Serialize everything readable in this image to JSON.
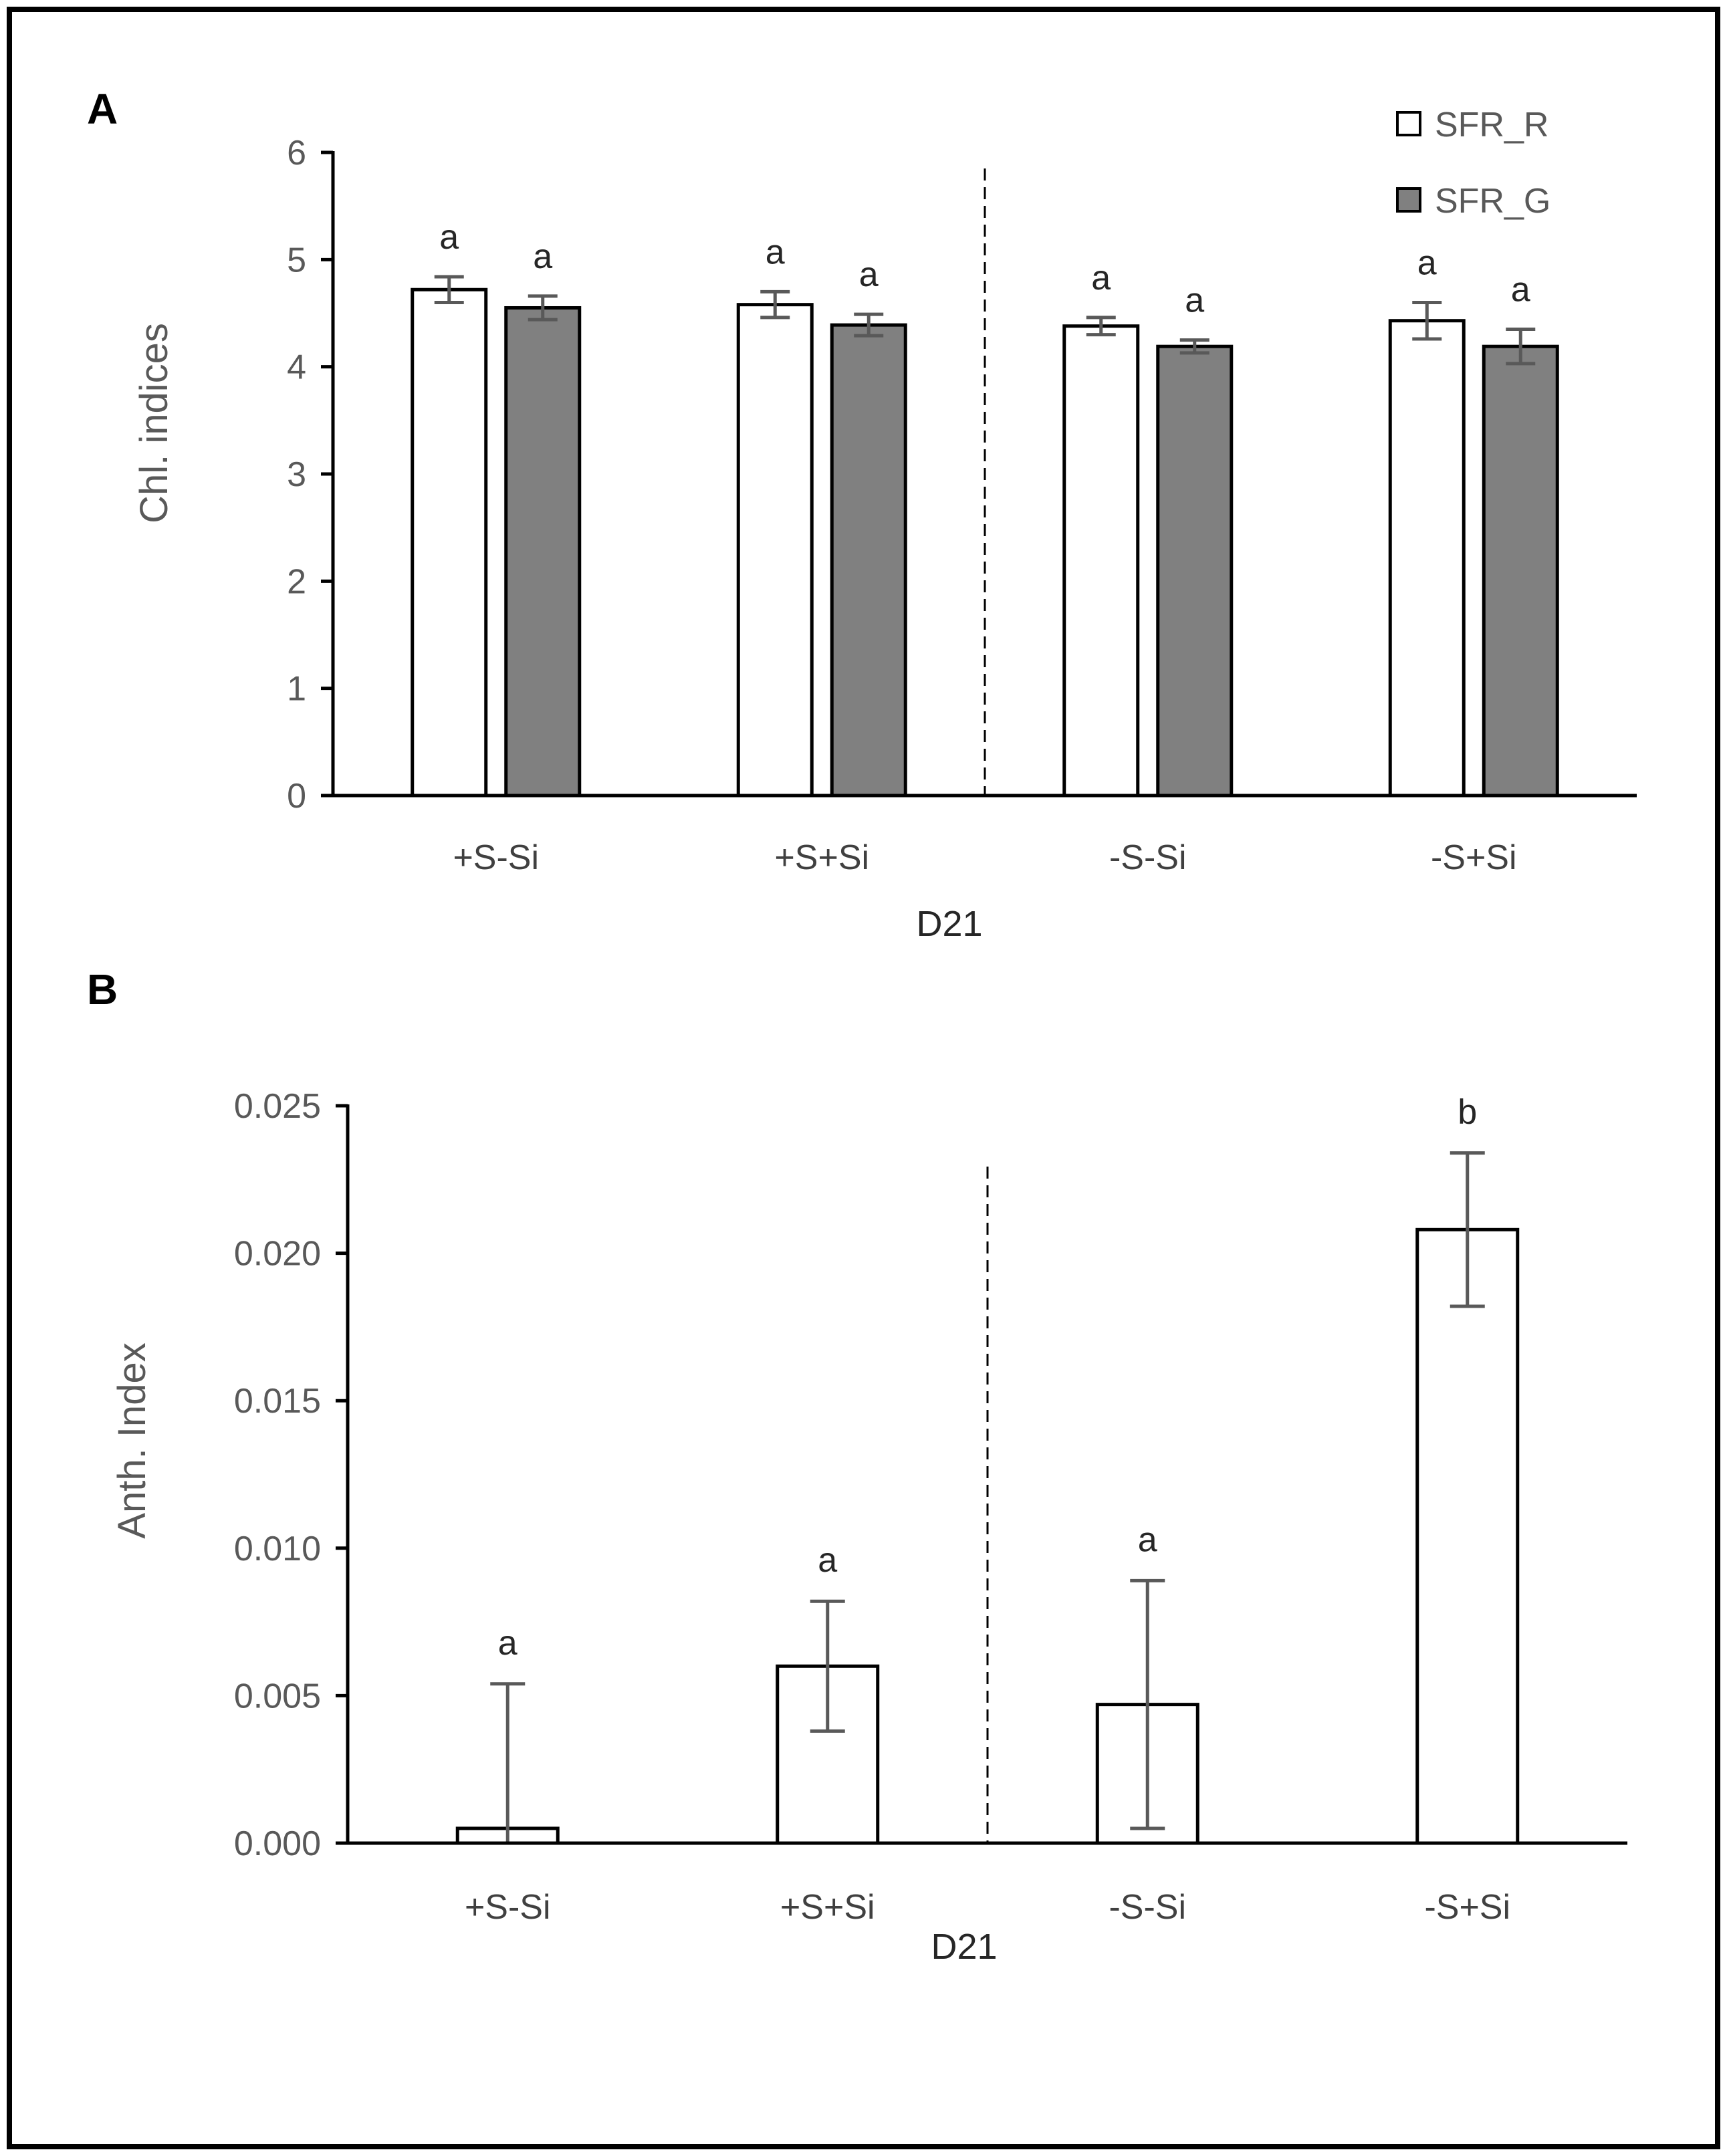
{
  "colors": {
    "SFR_R": "#ffffff",
    "SFR_G": "#808080",
    "bar_stroke": "#000000",
    "error_bar": "#595959",
    "frame": "#000000"
  },
  "chart_data": [
    {
      "panel": "A",
      "type": "bar",
      "categories": [
        "+S-Si",
        "+S+Si",
        "-S-Si",
        "-S+Si"
      ],
      "xlabel": "D21",
      "ylabel": "Chl. indices",
      "ylim": [
        0,
        6
      ],
      "yticks": [
        "0",
        "1",
        "2",
        "3",
        "4",
        "5",
        "6"
      ],
      "divider_after_category": 1,
      "legend": {
        "placement": "top-right",
        "entries": [
          "SFR_R",
          "SFR_G"
        ]
      },
      "series": [
        {
          "name": "SFR_R",
          "color_key": "SFR_R",
          "values": [
            4.72,
            4.58,
            4.38,
            4.43
          ],
          "errors": [
            0.12,
            0.12,
            0.08,
            0.17
          ],
          "letters": [
            "a",
            "a",
            "a",
            "a"
          ]
        },
        {
          "name": "SFR_G",
          "color_key": "SFR_G",
          "values": [
            4.55,
            4.39,
            4.19,
            4.19
          ],
          "errors": [
            0.11,
            0.1,
            0.06,
            0.16
          ],
          "letters": [
            "a",
            "a",
            "a",
            "a"
          ]
        }
      ]
    },
    {
      "panel": "B",
      "type": "bar",
      "categories": [
        "+S-Si",
        "+S+Si",
        "-S-Si",
        "-S+Si"
      ],
      "xlabel": "D21",
      "ylabel": "Anth. Index",
      "ylim": [
        0,
        0.025
      ],
      "yticks": [
        "0.000",
        "0.005",
        "0.010",
        "0.015",
        "0.020",
        "0.025"
      ],
      "divider_after_category": 1,
      "series": [
        {
          "color_key": "SFR_R",
          "values": [
            0.0005,
            0.006,
            0.0047,
            0.0208
          ],
          "errors": [
            0.0049,
            0.0022,
            0.0042,
            0.0026
          ],
          "letters": [
            "a",
            "a",
            "a",
            "b"
          ]
        }
      ]
    }
  ]
}
